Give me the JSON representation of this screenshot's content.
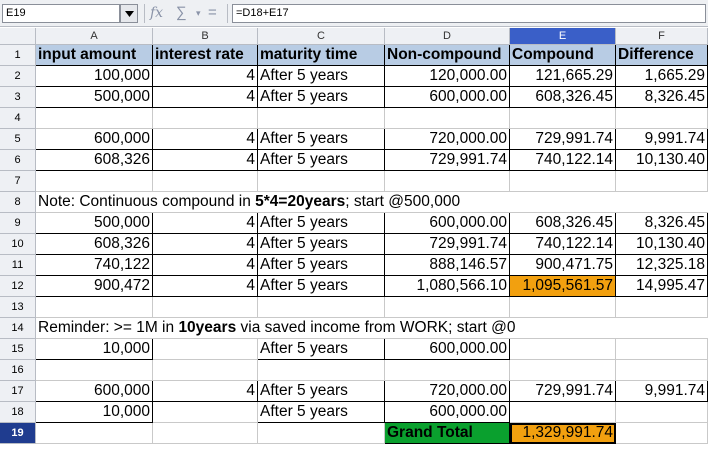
{
  "formula_bar": {
    "name_box": "E19",
    "formula": "=D18+E17",
    "icons": [
      "function-wizard-icon",
      "sum-icon",
      "equals-icon"
    ]
  },
  "columns": [
    "A",
    "B",
    "C",
    "D",
    "E",
    "F"
  ],
  "active_column": "E",
  "active_row": "19",
  "rows": [
    {
      "n": "1",
      "cells": [
        "input amount",
        "interest rate",
        "maturity time",
        "Non-compound",
        "Compound",
        "Difference"
      ]
    },
    {
      "n": "2",
      "cells": [
        "100,000",
        "4",
        "After 5 years",
        "120,000.00",
        "121,665.29",
        "1,665.29"
      ]
    },
    {
      "n": "3",
      "cells": [
        "500,000",
        "4",
        "After 5 years",
        "600,000.00",
        "608,326.45",
        "8,326.45"
      ]
    },
    {
      "n": "4",
      "cells": [
        "",
        "",
        "",
        "",
        "",
        ""
      ]
    },
    {
      "n": "5",
      "cells": [
        "600,000",
        "4",
        "After 5 years",
        "720,000.00",
        "729,991.74",
        "9,991.74"
      ]
    },
    {
      "n": "6",
      "cells": [
        "608,326",
        "4",
        "After 5 years",
        "729,991.74",
        "740,122.14",
        "10,130.40"
      ]
    },
    {
      "n": "7",
      "cells": [
        "",
        "",
        "",
        "",
        "",
        ""
      ]
    },
    {
      "n": "8",
      "note": {
        "pre": "Note: Continuous compound in ",
        "bold": "5*4=20years",
        "post": "; start @500,000"
      }
    },
    {
      "n": "9",
      "cells": [
        "500,000",
        "4",
        "After 5 years",
        "600,000.00",
        "608,326.45",
        "8,326.45"
      ]
    },
    {
      "n": "10",
      "cells": [
        "608,326",
        "4",
        "After 5 years",
        "729,991.74",
        "740,122.14",
        "10,130.40"
      ]
    },
    {
      "n": "11",
      "cells": [
        "740,122",
        "4",
        "After 5 years",
        "888,146.57",
        "900,471.75",
        "12,325.18"
      ]
    },
    {
      "n": "12",
      "cells": [
        "900,472",
        "4",
        "After 5 years",
        "1,080,566.10",
        "1,095,561.57",
        "14,995.47"
      ]
    },
    {
      "n": "13",
      "cells": [
        "",
        "",
        "",
        "",
        "",
        ""
      ]
    },
    {
      "n": "14",
      "note": {
        "pre": "Reminder: >= 1M in ",
        "bold": "10years",
        "post": " via saved income from WORK; start @0"
      }
    },
    {
      "n": "15",
      "cells": [
        "10,000",
        "",
        "After 5 years",
        "600,000.00",
        "",
        ""
      ]
    },
    {
      "n": "16",
      "cells": [
        "",
        "",
        "",
        "",
        "",
        ""
      ]
    },
    {
      "n": "17",
      "cells": [
        "600,000",
        "4",
        "After 5 years",
        "720,000.00",
        "729,991.74",
        "9,991.74"
      ]
    },
    {
      "n": "18",
      "cells": [
        "10,000",
        "",
        "After 5 years",
        "600,000.00",
        "",
        ""
      ]
    },
    {
      "n": "19",
      "cells": [
        "",
        "",
        "",
        "Grand Total",
        "1,329,991.74",
        ""
      ]
    }
  ],
  "colors": {
    "header_fill": "#b8cce4",
    "highlight_orange": "#f2a00f",
    "grand_total_green": "#0aa02e",
    "active_header": "#3a5fc8"
  }
}
